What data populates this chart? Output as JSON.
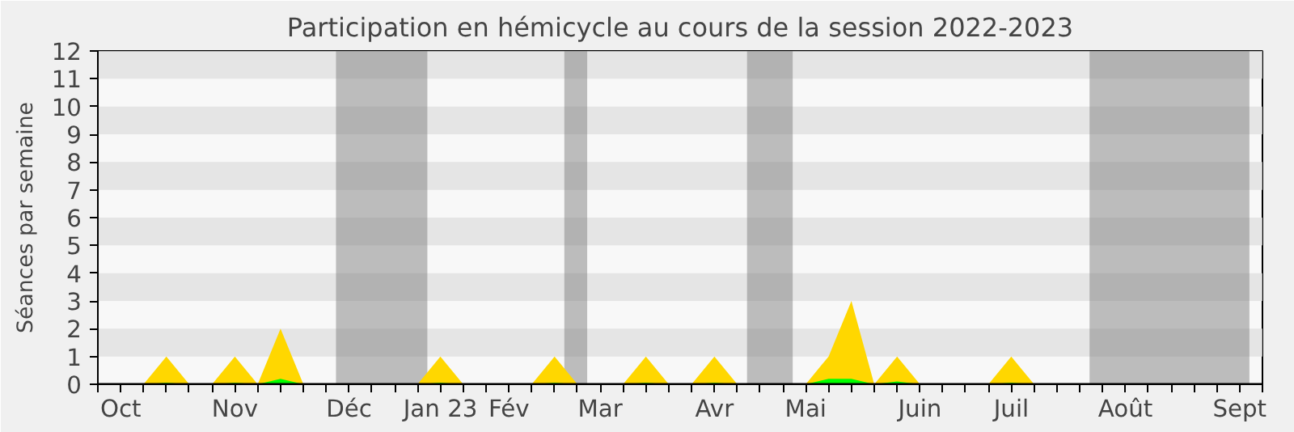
{
  "chart_data": {
    "type": "area",
    "title": "Participation en hémicycle au cours de la session 2022-2023",
    "ylabel": "Séances par semaine",
    "x": [
      "2022-09-29",
      "2022-10-06",
      "2022-10-13",
      "2022-10-20",
      "2022-10-27",
      "2022-11-03",
      "2022-11-10",
      "2022-11-17",
      "2022-11-24",
      "2022-12-01",
      "2022-12-08",
      "2022-12-15",
      "2022-12-22",
      "2022-12-29",
      "2023-01-05",
      "2023-01-12",
      "2023-01-19",
      "2023-01-26",
      "2023-02-02",
      "2023-02-09",
      "2023-02-16",
      "2023-02-23",
      "2023-03-02",
      "2023-03-09",
      "2023-03-16",
      "2023-03-23",
      "2023-03-30",
      "2023-04-06",
      "2023-04-13",
      "2023-04-20",
      "2023-04-27",
      "2023-05-04",
      "2023-05-11",
      "2023-05-18",
      "2023-05-25",
      "2023-06-01",
      "2023-06-08",
      "2023-06-15",
      "2023-06-22",
      "2023-06-29",
      "2023-07-06",
      "2023-07-13",
      "2023-07-20",
      "2023-07-27",
      "2023-08-03",
      "2023-08-10",
      "2023-08-17",
      "2023-08-24",
      "2023-08-31",
      "2023-09-07",
      "2023-09-14",
      "2023-09-21"
    ],
    "series": [
      {
        "color": "#ffd700",
        "values": [
          0,
          0,
          0,
          1,
          0,
          0,
          1,
          0,
          2,
          0,
          0,
          0,
          0,
          0,
          0,
          1,
          0,
          0,
          0,
          0,
          1,
          0,
          0,
          0,
          1,
          0,
          0,
          1,
          0,
          0,
          0,
          0,
          1,
          3,
          0,
          1,
          0,
          0,
          0,
          0,
          1,
          0,
          0,
          0,
          0,
          0,
          0,
          0,
          0,
          0,
          0,
          0
        ]
      },
      {
        "color": "#00ff00",
        "values": [
          0,
          0,
          0,
          0.05,
          0,
          0,
          0.05,
          0,
          0.2,
          0,
          0,
          0,
          0,
          0,
          0,
          0.05,
          0,
          0,
          0,
          0,
          0.05,
          0,
          0,
          0,
          0.05,
          0,
          0,
          0.05,
          0,
          0,
          0,
          0,
          0.2,
          0.2,
          0,
          0.1,
          0,
          0,
          0,
          0,
          0.05,
          0,
          0,
          0,
          0,
          0,
          0,
          0,
          0,
          0,
          0,
          0
        ]
      }
    ],
    "xlim": [
      "2022-09-29",
      "2023-09-21"
    ],
    "ylim": [
      0,
      12
    ],
    "yticks": [
      0,
      1,
      2,
      3,
      4,
      5,
      6,
      7,
      8,
      9,
      10,
      11,
      12
    ],
    "xticks": [
      {
        "value": "2022-09-29",
        "label": null
      },
      {
        "value": "2022-10-06",
        "label": "Oct"
      },
      {
        "value": "2022-10-13",
        "label": null
      },
      {
        "value": "2022-10-20",
        "label": null
      },
      {
        "value": "2022-10-27",
        "label": null
      },
      {
        "value": "2022-11-03",
        "label": null
      },
      {
        "value": "2022-11-10",
        "label": "Nov"
      },
      {
        "value": "2022-11-17",
        "label": null
      },
      {
        "value": "2022-11-24",
        "label": null
      },
      {
        "value": "2022-12-01",
        "label": null
      },
      {
        "value": "2022-12-08",
        "label": null
      },
      {
        "value": "2022-12-15",
        "label": "Déc"
      },
      {
        "value": "2022-12-22",
        "label": null
      },
      {
        "value": "2022-12-29",
        "label": null
      },
      {
        "value": "2023-01-05",
        "label": null
      },
      {
        "value": "2023-01-12",
        "label": "Jan 23"
      },
      {
        "value": "2023-01-19",
        "label": null
      },
      {
        "value": "2023-01-26",
        "label": null
      },
      {
        "value": "2023-02-02",
        "label": "Fév"
      },
      {
        "value": "2023-02-09",
        "label": null
      },
      {
        "value": "2023-02-16",
        "label": null
      },
      {
        "value": "2023-02-23",
        "label": null
      },
      {
        "value": "2023-03-02",
        "label": "Mar"
      },
      {
        "value": "2023-03-09",
        "label": null
      },
      {
        "value": "2023-03-16",
        "label": null
      },
      {
        "value": "2023-03-23",
        "label": null
      },
      {
        "value": "2023-03-30",
        "label": null
      },
      {
        "value": "2023-04-06",
        "label": "Avr"
      },
      {
        "value": "2023-04-13",
        "label": null
      },
      {
        "value": "2023-04-20",
        "label": null
      },
      {
        "value": "2023-04-27",
        "label": null
      },
      {
        "value": "2023-05-04",
        "label": "Mai"
      },
      {
        "value": "2023-05-11",
        "label": null
      },
      {
        "value": "2023-05-18",
        "label": null
      },
      {
        "value": "2023-05-25",
        "label": null
      },
      {
        "value": "2023-06-01",
        "label": null
      },
      {
        "value": "2023-06-08",
        "label": "Juin"
      },
      {
        "value": "2023-06-15",
        "label": null
      },
      {
        "value": "2023-06-22",
        "label": null
      },
      {
        "value": "2023-06-29",
        "label": null
      },
      {
        "value": "2023-07-06",
        "label": "Juil"
      },
      {
        "value": "2023-07-13",
        "label": null
      },
      {
        "value": "2023-07-20",
        "label": null
      },
      {
        "value": "2023-07-27",
        "label": null
      },
      {
        "value": "2023-08-03",
        "label": null
      },
      {
        "value": "2023-08-10",
        "label": "Août"
      },
      {
        "value": "2023-08-17",
        "label": null
      },
      {
        "value": "2023-08-24",
        "label": null
      },
      {
        "value": "2023-08-31",
        "label": null
      },
      {
        "value": "2023-09-07",
        "label": null
      },
      {
        "value": "2023-09-14",
        "label": "Sept"
      },
      {
        "value": "2023-09-21",
        "label": null
      }
    ],
    "bands": [
      {
        "axis": "x",
        "from": "2022-12-11",
        "to": "2023-01-08",
        "color": "#808080"
      },
      {
        "axis": "x",
        "from": "2023-02-19",
        "to": "2023-02-26",
        "color": "#808080"
      },
      {
        "axis": "x",
        "from": "2023-04-16",
        "to": "2023-04-30",
        "color": "#808080"
      },
      {
        "axis": "x",
        "from": "2023-07-30",
        "to": "2023-09-17",
        "color": "#808080"
      }
    ]
  }
}
